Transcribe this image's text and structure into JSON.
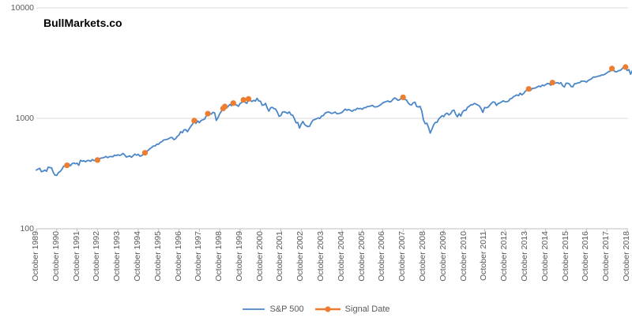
{
  "chart_data": {
    "type": "line",
    "title": "BullMarkets.co",
    "scale": "log",
    "legend_position": "bottom",
    "grid": "horizontal",
    "colors": {
      "sp500_line": "#4a86c8",
      "signal_marker": "#ed7d31",
      "gridline": "#d9d9d9",
      "axis_line": "#bfbfbf",
      "tick_label": "#595959"
    },
    "y_axis": {
      "ylim": [
        100,
        10000
      ],
      "ticks": [
        {
          "label": "100",
          "value": 100
        },
        {
          "label": "1000",
          "value": 1000
        },
        {
          "label": "10000",
          "value": 10000
        }
      ]
    },
    "x_axis": {
      "tick_interval": "1 year",
      "tick_labels": [
        "October 1989",
        "October 1990",
        "October 1991",
        "October 1992",
        "October 1993",
        "October 1994",
        "October 1995",
        "October 1996",
        "October 1997",
        "October 1998",
        "October 1999",
        "October 2000",
        "October 2001",
        "October 2002",
        "October 2003",
        "October 2004",
        "October 2005",
        "October 2006",
        "October 2007",
        "October 2008",
        "October 2009",
        "October 2010",
        "October 2011",
        "October 2012",
        "October 2013",
        "October 2014",
        "October 2015",
        "October 2016",
        "October 2017",
        "October 2018"
      ]
    },
    "series": [
      {
        "name": "S&P 500",
        "color": "#4a86c8",
        "start": "1989-10",
        "frequency": "monthly",
        "values": [
          340,
          346,
          353,
          329,
          332,
          340,
          331,
          361,
          358,
          356,
          323,
          306,
          304,
          322,
          330,
          344,
          367,
          375,
          375,
          390,
          371,
          388,
          395,
          388,
          392,
          375,
          417,
          409,
          413,
          404,
          415,
          415,
          408,
          424,
          414,
          418,
          419,
          431,
          436,
          439,
          443,
          452,
          440,
          450,
          451,
          448,
          464,
          459,
          468,
          462,
          466,
          482,
          467,
          446,
          451,
          457,
          444,
          458,
          475,
          463,
          472,
          454,
          459,
          470,
          487,
          501,
          515,
          533,
          545,
          562,
          562,
          584,
          582,
          605,
          616,
          636,
          640,
          646,
          654,
          669,
          671,
          640,
          652,
          687,
          705,
          757,
          741,
          786,
          791,
          757,
          801,
          848,
          885,
          954,
          899,
          947,
          914,
          955,
          970,
          980,
          1049,
          1102,
          1112,
          1091,
          1134,
          1121,
          957,
          1017,
          1099,
          1164,
          1229,
          1280,
          1238,
          1286,
          1335,
          1302,
          1373,
          1329,
          1320,
          1283,
          1363,
          1389,
          1469,
          1394,
          1366,
          1499,
          1452,
          1421,
          1455,
          1431,
          1518,
          1437,
          1429,
          1315,
          1320,
          1366,
          1240,
          1160,
          1249,
          1256,
          1224,
          1211,
          1134,
          1041,
          1060,
          1139,
          1148,
          1130,
          1107,
          1147,
          1077,
          1067,
          990,
          911,
          916,
          815,
          886,
          936,
          880,
          856,
          841,
          848,
          917,
          964,
          975,
          990,
          1008,
          996,
          1051,
          1058,
          1112,
          1131,
          1145,
          1126,
          1107,
          1121,
          1141,
          1102,
          1104,
          1115,
          1130,
          1174,
          1212,
          1181,
          1204,
          1181,
          1157,
          1192,
          1191,
          1234,
          1220,
          1229,
          1207,
          1249,
          1248,
          1280,
          1281,
          1295,
          1311,
          1270,
          1270,
          1277,
          1304,
          1336,
          1378,
          1401,
          1418,
          1438,
          1407,
          1421,
          1482,
          1531,
          1503,
          1455,
          1474,
          1527,
          1549,
          1481,
          1468,
          1379,
          1331,
          1323,
          1386,
          1400,
          1280,
          1267,
          1283,
          1166,
          969,
          896,
          903,
          826,
          735,
          798,
          873,
          919,
          919,
          987,
          1021,
          1057,
          1036,
          1096,
          1115,
          1074,
          1104,
          1169,
          1187,
          1089,
          1031,
          1102,
          1049,
          1141,
          1183,
          1181,
          1258,
          1286,
          1327,
          1326,
          1364,
          1345,
          1321,
          1292,
          1219,
          1131,
          1253,
          1247,
          1258,
          1312,
          1366,
          1408,
          1398,
          1310,
          1362,
          1379,
          1407,
          1441,
          1412,
          1416,
          1426,
          1498,
          1515,
          1569,
          1598,
          1631,
          1606,
          1686,
          1633,
          1682,
          1757,
          1806,
          1848,
          1783,
          1859,
          1872,
          1884,
          1924,
          1960,
          1931,
          2003,
          1972,
          2018,
          2068,
          2059,
          1995,
          2105,
          2068,
          2086,
          2107,
          2063,
          2104,
          1972,
          1920,
          2079,
          2080,
          2044,
          1940,
          1932,
          2060,
          2065,
          2097,
          2099,
          2174,
          2171,
          2168,
          2126,
          2199,
          2239,
          2279,
          2364,
          2363,
          2384,
          2412,
          2423,
          2470,
          2472,
          2519,
          2575,
          2648,
          2674,
          2824,
          2714,
          2641,
          2648,
          2705,
          2718,
          2816,
          2902,
          2914,
          2712,
          2760,
          2507,
          2704,
          2784,
          2834,
          2946
        ]
      },
      {
        "name": "Signal Date",
        "color": "#ed7d31",
        "points": [
          {
            "date": "1991-04",
            "value": 375
          },
          {
            "date": "1992-10",
            "value": 419
          },
          {
            "date": "1995-02",
            "value": 487
          },
          {
            "date": "1997-07",
            "value": 954
          },
          {
            "date": "1998-03",
            "value": 1102
          },
          {
            "date": "1998-12",
            "value": 1229
          },
          {
            "date": "1999-01",
            "value": 1280
          },
          {
            "date": "1999-06",
            "value": 1373
          },
          {
            "date": "1999-12",
            "value": 1469
          },
          {
            "date": "2000-03",
            "value": 1499
          },
          {
            "date": "2007-10",
            "value": 1549
          },
          {
            "date": "2013-12",
            "value": 1848
          },
          {
            "date": "2015-02",
            "value": 2105
          },
          {
            "date": "2018-01",
            "value": 2824
          },
          {
            "date": "2018-09",
            "value": 2914
          },
          {
            "date": "2019-04",
            "value": 2946
          }
        ]
      }
    ]
  }
}
